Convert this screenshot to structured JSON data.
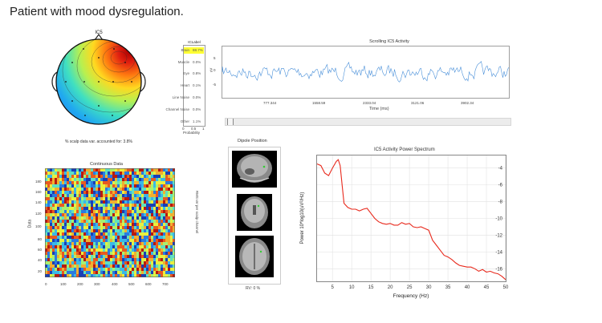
{
  "page": {
    "title": "Patient with mood dysregulation."
  },
  "topomap": {
    "title": "IC5",
    "caption": "% scalp data var. accounted for: 3.8%"
  },
  "iclabel": {
    "title": "ICLabel",
    "xlabel": "Probability",
    "xticks": [
      "0",
      "0.5",
      "1"
    ],
    "rows": [
      {
        "label": "Brain",
        "value": "88.7%"
      },
      {
        "label": "Muscle",
        "value": "0.0%"
      },
      {
        "label": "Eye",
        "value": "0.8%"
      },
      {
        "label": "Heart",
        "value": "0.1%"
      },
      {
        "label": "Line Noise",
        "value": "0.0%"
      },
      {
        "label": "Channel Noise",
        "value": "0.0%"
      },
      {
        "label": "Other",
        "value": "1.1%"
      }
    ],
    "highlight_color": "#ffff33"
  },
  "scrolling": {
    "title": "Scrolling IC5 Activity",
    "ylabel": "uV",
    "yticks": [
      "5",
      "0",
      "-5"
    ],
    "xticks": [
      "777.344",
      "1558.59",
      "2333.04",
      "3121.06",
      "3902.34"
    ],
    "xlabel": "Time (ms)",
    "color": "#4a90d9"
  },
  "continuous": {
    "title": "Continuous Data",
    "ylabel": "Data",
    "yticks": [
      "180",
      "160",
      "140",
      "120",
      "100",
      "80",
      "60",
      "40",
      "20"
    ],
    "xticks": [
      "0",
      "100",
      "200",
      "300",
      "400",
      "500",
      "600",
      "700"
    ],
    "side_label": "RMS uV per scalp channel"
  },
  "dipole": {
    "title": "Dipole Position",
    "caption": "RV: 0 %",
    "marker_color": "#33cc33"
  },
  "spectrum": {
    "title": "IC5 Activity Power Spectrum",
    "xlabel": "Frequency (Hz)",
    "ylabel": "Power 10*log10(uV²/Hz)",
    "xticks": [
      "5",
      "10",
      "15",
      "20",
      "25",
      "30",
      "35",
      "40",
      "45",
      "50"
    ],
    "yticks": [
      "-4",
      "-6",
      "-8",
      "-10",
      "-12",
      "-14",
      "-16"
    ],
    "color": "#e8291c"
  },
  "chart_data": [
    {
      "type": "line",
      "title": "IC5 Activity Power Spectrum",
      "xlabel": "Frequency (Hz)",
      "ylabel": "Power 10*log10(uV²/Hz)",
      "xlim": [
        1,
        50
      ],
      "ylim": [
        -17.5,
        -2.5
      ],
      "grid": true,
      "series": [
        {
          "x": [
            1,
            2,
            3,
            4,
            5,
            6,
            6.5,
            7,
            7.5,
            8,
            9,
            10,
            11,
            12,
            13,
            14,
            15,
            16,
            17,
            18,
            19,
            20,
            21,
            22,
            23,
            24,
            25,
            26,
            27,
            28,
            29,
            30,
            31,
            32,
            33,
            34,
            35,
            36,
            37,
            38,
            39,
            40,
            41,
            42,
            43,
            44,
            45,
            46,
            47,
            48,
            49,
            50
          ],
          "values": [
            -3.5,
            -3.7,
            -4.6,
            -4.9,
            -4.0,
            -3.2,
            -3.0,
            -3.7,
            -6.0,
            -8.2,
            -8.7,
            -8.9,
            -8.9,
            -9.1,
            -8.9,
            -8.8,
            -9.4,
            -10.0,
            -10.4,
            -10.6,
            -10.7,
            -10.6,
            -10.8,
            -10.8,
            -10.5,
            -10.7,
            -10.6,
            -11.0,
            -11.1,
            -11.0,
            -11.2,
            -11.4,
            -12.6,
            -13.2,
            -13.8,
            -14.4,
            -14.6,
            -14.9,
            -15.3,
            -15.6,
            -15.7,
            -15.8,
            -15.8,
            -16.0,
            -16.3,
            -16.1,
            -16.4,
            -16.3,
            -16.5,
            -16.6,
            -16.9,
            -17.3
          ]
        }
      ]
    }
  ]
}
